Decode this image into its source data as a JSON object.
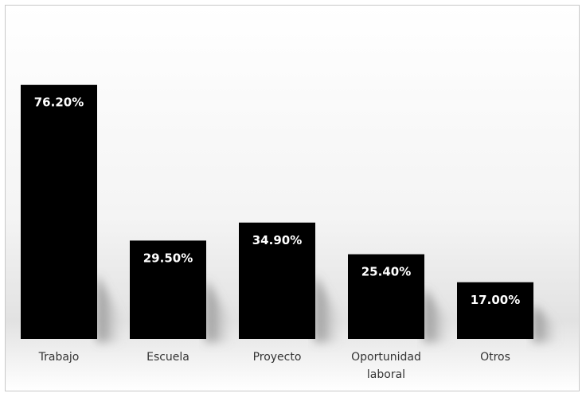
{
  "chart_data": {
    "type": "bar",
    "categories": [
      [
        "Trabajo"
      ],
      [
        "Escuela"
      ],
      [
        "Proyecto"
      ],
      [
        "Oportunidad",
        "laboral"
      ],
      [
        "Otros"
      ]
    ],
    "values": [
      76.2,
      29.5,
      34.9,
      25.4,
      17.0
    ],
    "data_labels": [
      "76.20%",
      "29.50%",
      "34.90%",
      "25.40%",
      "17.00%"
    ],
    "title": "",
    "xlabel": "",
    "ylabel": "",
    "ylim": [
      0,
      100
    ],
    "grid": false,
    "legend": "none",
    "colors": {
      "bar": "#000000",
      "label": "#ffffff",
      "background_gradient_mid": "#e2e2e2",
      "frame_border": "#c8c8c8"
    }
  }
}
